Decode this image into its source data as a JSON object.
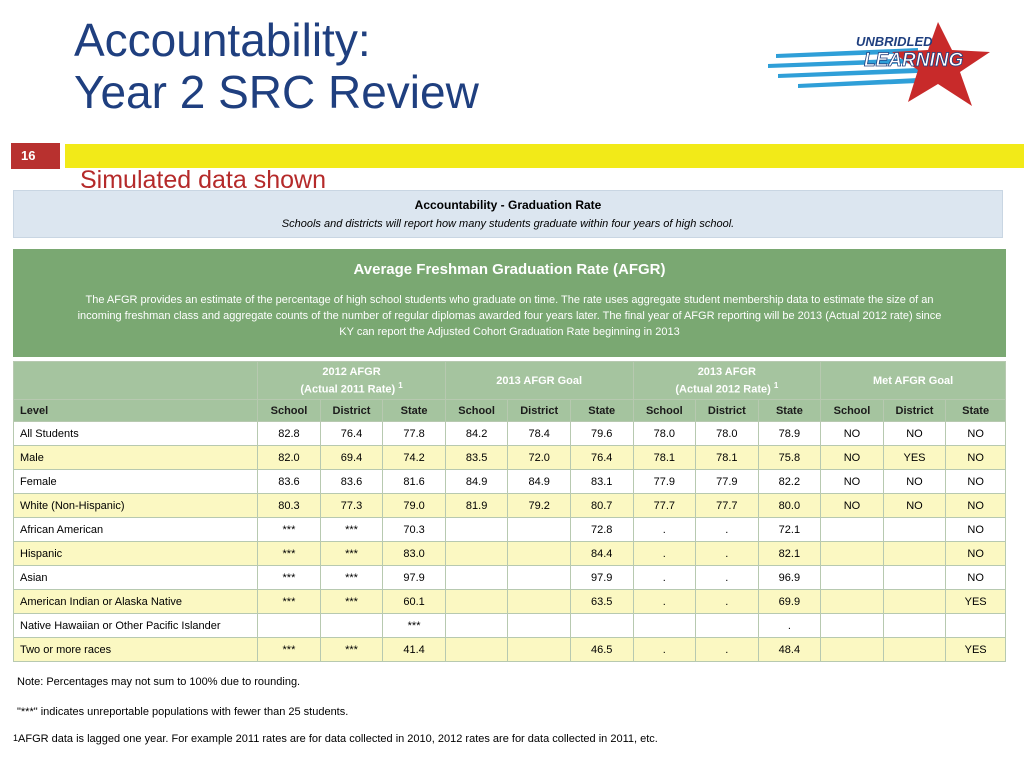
{
  "slide": {
    "title_line1": "Accountability:",
    "title_line2": "Year 2 SRC Review",
    "number": "16",
    "subtitle": "Simulated data shown",
    "logo_line1": "UNBRIDLED",
    "logo_line2": "LEARNING",
    "colors": {
      "title": "#1f3f7f",
      "accent_red": "#b8312f",
      "accent_yellow": "#f2ea18",
      "green_header": "#7aa872",
      "green_light": "#a5c49f",
      "row_yellow": "#fbf8c2"
    }
  },
  "report_header": {
    "title": "Accountability - Graduation Rate",
    "subtitle": "Schools and districts will report how many students graduate within four years of high school."
  },
  "afgr_box": {
    "title": "Average Freshman Graduation Rate (AFGR)",
    "description": "The AFGR provides an estimate of the percentage of high school students who graduate on time. The rate uses aggregate student membership data to estimate the size of an incoming freshman class and aggregate counts of the number of regular diplomas awarded four years later. The final year of AFGR reporting will be 2013 (Actual 2012 rate) since KY can report the Adjusted Cohort Graduation Rate beginning in 2013"
  },
  "table": {
    "groups": [
      {
        "line1": "2012 AFGR",
        "line2": "(Actual 2011 Rate)",
        "footnote": "1"
      },
      {
        "line1": "2013 AFGR Goal",
        "line2": "",
        "footnote": ""
      },
      {
        "line1": "2013 AFGR",
        "line2": "(Actual 2012 Rate)",
        "footnote": "1"
      },
      {
        "line1": "Met AFGR Goal",
        "line2": "",
        "footnote": ""
      }
    ],
    "columns": [
      "Level",
      "School",
      "District",
      "State",
      "School",
      "District",
      "State",
      "School",
      "District",
      "State",
      "School",
      "District",
      "State"
    ],
    "rows": [
      [
        "All Students",
        "82.8",
        "76.4",
        "77.8",
        "84.2",
        "78.4",
        "79.6",
        "78.0",
        "78.0",
        "78.9",
        "NO",
        "NO",
        "NO"
      ],
      [
        "Male",
        "82.0",
        "69.4",
        "74.2",
        "83.5",
        "72.0",
        "76.4",
        "78.1",
        "78.1",
        "75.8",
        "NO",
        "YES",
        "NO"
      ],
      [
        "Female",
        "83.6",
        "83.6",
        "81.6",
        "84.9",
        "84.9",
        "83.1",
        "77.9",
        "77.9",
        "82.2",
        "NO",
        "NO",
        "NO"
      ],
      [
        "White (Non-Hispanic)",
        "80.3",
        "77.3",
        "79.0",
        "81.9",
        "79.2",
        "80.7",
        "77.7",
        "77.7",
        "80.0",
        "NO",
        "NO",
        "NO"
      ],
      [
        "African American",
        "***",
        "***",
        "70.3",
        "",
        "",
        "72.8",
        ".",
        ".",
        "72.1",
        "",
        "",
        "NO"
      ],
      [
        "Hispanic",
        "***",
        "***",
        "83.0",
        "",
        "",
        "84.4",
        ".",
        ".",
        "82.1",
        "",
        "",
        "NO"
      ],
      [
        "Asian",
        "***",
        "***",
        "97.9",
        "",
        "",
        "97.9",
        ".",
        ".",
        "96.9",
        "",
        "",
        "NO"
      ],
      [
        "American Indian or Alaska Native",
        "***",
        "***",
        "60.1",
        "",
        "",
        "63.5",
        ".",
        ".",
        "69.9",
        "",
        "",
        "YES"
      ],
      [
        "Native Hawaiian or Other Pacific Islander",
        "",
        "",
        "***",
        "",
        "",
        "",
        "",
        "",
        ".",
        "",
        "",
        ""
      ],
      [
        "Two or more races",
        "***",
        "***",
        "41.4",
        "",
        "",
        "46.5",
        ".",
        ".",
        "48.4",
        "",
        "",
        "YES"
      ]
    ]
  },
  "notes": {
    "note1": "Note: Percentages may not sum to 100% due to rounding.",
    "note2": "\"***\" indicates unreportable populations with fewer than 25 students.",
    "note3_marker": "1",
    "note3": "AFGR data is lagged one year. For example 2011 rates are for data collected in 2010, 2012 rates are for data collected in 2011, etc."
  }
}
